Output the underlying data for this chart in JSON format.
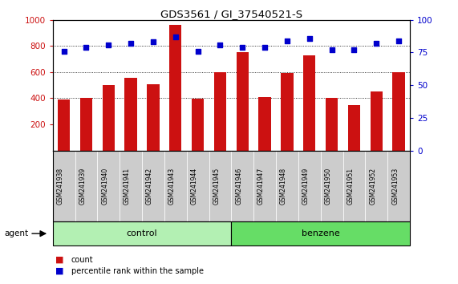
{
  "title": "GDS3561 / GI_37540521-S",
  "samples": [
    "GSM241938",
    "GSM241939",
    "GSM241940",
    "GSM241941",
    "GSM241942",
    "GSM241943",
    "GSM241944",
    "GSM241945",
    "GSM241946",
    "GSM241947",
    "GSM241948",
    "GSM241949",
    "GSM241950",
    "GSM241951",
    "GSM241952",
    "GSM241953"
  ],
  "counts": [
    390,
    400,
    500,
    555,
    505,
    960,
    395,
    600,
    755,
    410,
    595,
    730,
    405,
    350,
    450,
    600
  ],
  "percentiles": [
    76,
    79,
    81,
    82,
    83,
    87,
    76,
    81,
    79,
    79,
    84,
    86,
    77,
    77,
    82,
    84
  ],
  "bar_color": "#cc1111",
  "dot_color": "#0000cc",
  "control_color": "#b3f0b3",
  "benzene_color": "#66dd66",
  "ylim_left": [
    0,
    1000
  ],
  "ylim_right": [
    0,
    100
  ],
  "yticks_left": [
    200,
    400,
    600,
    800,
    1000
  ],
  "yticks_right": [
    0,
    25,
    50,
    75,
    100
  ],
  "grid_values": [
    400,
    600,
    800
  ],
  "agent_label": "agent",
  "control_label": "control",
  "benzene_label": "benzene",
  "legend_count": "count",
  "legend_percentile": "percentile rank within the sample",
  "bg_color": "#ffffff",
  "tick_bg_color": "#cccccc"
}
